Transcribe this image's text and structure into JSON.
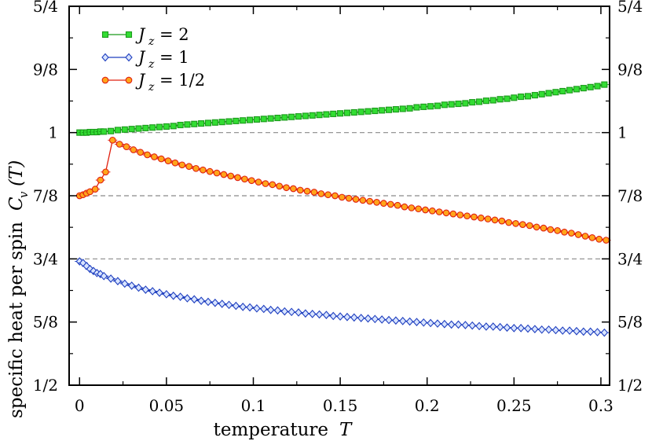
{
  "chart_data": {
    "type": "line",
    "xlabel": "temperature",
    "xlabel_symbol": "T",
    "ylabel": "specific heat per spin",
    "ylabel_symbol": "C",
    "ylabel_subscript": "v",
    "ylabel_arg": "(T)",
    "xlim": [
      -0.006,
      0.305
    ],
    "ylim": [
      0.5,
      1.25
    ],
    "x_ticks": [
      0,
      0.05,
      0.1,
      0.15,
      0.2,
      0.25,
      0.3
    ],
    "x_tick_labels": [
      "0",
      "0.05",
      "0.1",
      "0.15",
      "0.2",
      "0.25",
      "0.3"
    ],
    "y_ticks": [
      0.5,
      0.625,
      0.75,
      0.875,
      1.0,
      1.125,
      1.25
    ],
    "y_tick_labels": [
      "1/2",
      "5/8",
      "3/4",
      "7/8",
      "1",
      "9/8",
      "5/4"
    ],
    "reference_lines": [
      0.75,
      0.875,
      1.0
    ],
    "legend_placement": "top-left",
    "series": [
      {
        "legend_symbol": "J",
        "legend_subscript": "z",
        "legend_value": "= 2",
        "color": "#1a9a1a",
        "fill": "#33dd33",
        "marker": "square",
        "x": [
          0.0,
          0.002,
          0.004,
          0.006,
          0.008,
          0.01,
          0.012,
          0.014,
          0.018,
          0.022,
          0.026,
          0.03,
          0.034,
          0.038,
          0.042,
          0.046,
          0.05,
          0.054,
          0.058,
          0.062,
          0.066,
          0.07,
          0.074,
          0.078,
          0.082,
          0.086,
          0.09,
          0.094,
          0.098,
          0.102,
          0.106,
          0.11,
          0.114,
          0.118,
          0.122,
          0.126,
          0.13,
          0.134,
          0.138,
          0.142,
          0.146,
          0.15,
          0.154,
          0.158,
          0.162,
          0.166,
          0.17,
          0.174,
          0.178,
          0.182,
          0.186,
          0.19,
          0.194,
          0.198,
          0.202,
          0.206,
          0.21,
          0.214,
          0.218,
          0.222,
          0.226,
          0.23,
          0.234,
          0.238,
          0.242,
          0.246,
          0.25,
          0.254,
          0.258,
          0.262,
          0.266,
          0.27,
          0.274,
          0.278,
          0.282,
          0.286,
          0.29,
          0.294,
          0.298,
          0.302
        ],
        "y": [
          1.0,
          1.0,
          1.0,
          1.001,
          1.001,
          1.001,
          1.002,
          1.002,
          1.003,
          1.005,
          1.006,
          1.007,
          1.008,
          1.009,
          1.01,
          1.011,
          1.012,
          1.013,
          1.015,
          1.016,
          1.017,
          1.018,
          1.019,
          1.02,
          1.021,
          1.022,
          1.023,
          1.024,
          1.025,
          1.026,
          1.027,
          1.028,
          1.029,
          1.03,
          1.031,
          1.032,
          1.033,
          1.034,
          1.035,
          1.036,
          1.037,
          1.038,
          1.039,
          1.04,
          1.041,
          1.042,
          1.043,
          1.044,
          1.045,
          1.046,
          1.047,
          1.048,
          1.05,
          1.051,
          1.052,
          1.053,
          1.055,
          1.056,
          1.057,
          1.058,
          1.06,
          1.061,
          1.063,
          1.064,
          1.066,
          1.067,
          1.069,
          1.071,
          1.072,
          1.074,
          1.076,
          1.078,
          1.08,
          1.082,
          1.084,
          1.086,
          1.088,
          1.09,
          1.092,
          1.095
        ]
      },
      {
        "legend_symbol": "J",
        "legend_subscript": "z",
        "legend_value": "= 1",
        "color": "#1f3fbf",
        "fill": "#d8e4ff",
        "marker": "diamond",
        "x": [
          0.0,
          0.002,
          0.004,
          0.006,
          0.008,
          0.01,
          0.012,
          0.014,
          0.018,
          0.022,
          0.026,
          0.03,
          0.034,
          0.038,
          0.042,
          0.046,
          0.05,
          0.054,
          0.058,
          0.062,
          0.066,
          0.07,
          0.074,
          0.078,
          0.082,
          0.086,
          0.09,
          0.094,
          0.098,
          0.102,
          0.106,
          0.11,
          0.114,
          0.118,
          0.122,
          0.126,
          0.13,
          0.134,
          0.138,
          0.142,
          0.146,
          0.15,
          0.154,
          0.158,
          0.162,
          0.166,
          0.17,
          0.174,
          0.178,
          0.182,
          0.186,
          0.19,
          0.194,
          0.198,
          0.202,
          0.206,
          0.21,
          0.214,
          0.218,
          0.222,
          0.226,
          0.23,
          0.234,
          0.238,
          0.242,
          0.246,
          0.25,
          0.254,
          0.258,
          0.262,
          0.266,
          0.27,
          0.274,
          0.278,
          0.282,
          0.286,
          0.29,
          0.294,
          0.298,
          0.302
        ],
        "y": [
          0.745,
          0.742,
          0.736,
          0.73,
          0.726,
          0.722,
          0.72,
          0.716,
          0.711,
          0.706,
          0.701,
          0.697,
          0.693,
          0.689,
          0.686,
          0.683,
          0.68,
          0.677,
          0.675,
          0.672,
          0.67,
          0.667,
          0.665,
          0.663,
          0.661,
          0.659,
          0.657,
          0.655,
          0.654,
          0.652,
          0.651,
          0.649,
          0.648,
          0.646,
          0.645,
          0.644,
          0.642,
          0.641,
          0.64,
          0.639,
          0.637,
          0.636,
          0.635,
          0.634,
          0.633,
          0.632,
          0.631,
          0.63,
          0.629,
          0.628,
          0.627,
          0.626,
          0.625,
          0.624,
          0.623,
          0.622,
          0.621,
          0.62,
          0.62,
          0.619,
          0.618,
          0.617,
          0.616,
          0.616,
          0.615,
          0.614,
          0.613,
          0.613,
          0.612,
          0.611,
          0.61,
          0.61,
          0.609,
          0.608,
          0.608,
          0.607,
          0.606,
          0.606,
          0.605,
          0.604
        ]
      },
      {
        "legend_symbol": "J",
        "legend_subscript": "z",
        "legend_value": "= 1/2",
        "color": "#e02010",
        "fill": "#ffa51a",
        "marker": "circle",
        "x": [
          0.0,
          0.002,
          0.004,
          0.006,
          0.009,
          0.012,
          0.015,
          0.019,
          0.023,
          0.027,
          0.031,
          0.035,
          0.039,
          0.043,
          0.047,
          0.051,
          0.055,
          0.059,
          0.063,
          0.067,
          0.071,
          0.075,
          0.079,
          0.083,
          0.087,
          0.091,
          0.095,
          0.099,
          0.103,
          0.107,
          0.111,
          0.115,
          0.119,
          0.123,
          0.127,
          0.131,
          0.135,
          0.139,
          0.143,
          0.147,
          0.151,
          0.155,
          0.159,
          0.163,
          0.167,
          0.171,
          0.175,
          0.179,
          0.183,
          0.187,
          0.191,
          0.195,
          0.199,
          0.203,
          0.207,
          0.211,
          0.215,
          0.219,
          0.223,
          0.227,
          0.231,
          0.235,
          0.239,
          0.243,
          0.247,
          0.251,
          0.255,
          0.259,
          0.263,
          0.267,
          0.271,
          0.275,
          0.279,
          0.283,
          0.287,
          0.291,
          0.295,
          0.299,
          0.303
        ],
        "y": [
          0.875,
          0.877,
          0.88,
          0.883,
          0.888,
          0.906,
          0.922,
          0.985,
          0.977,
          0.972,
          0.966,
          0.961,
          0.956,
          0.952,
          0.948,
          0.944,
          0.94,
          0.936,
          0.933,
          0.929,
          0.926,
          0.923,
          0.92,
          0.917,
          0.914,
          0.911,
          0.908,
          0.905,
          0.902,
          0.899,
          0.897,
          0.894,
          0.891,
          0.889,
          0.886,
          0.884,
          0.882,
          0.879,
          0.877,
          0.875,
          0.872,
          0.87,
          0.868,
          0.866,
          0.864,
          0.862,
          0.86,
          0.858,
          0.856,
          0.853,
          0.851,
          0.849,
          0.847,
          0.845,
          0.843,
          0.841,
          0.839,
          0.837,
          0.835,
          0.833,
          0.831,
          0.829,
          0.827,
          0.825,
          0.822,
          0.82,
          0.818,
          0.816,
          0.813,
          0.811,
          0.808,
          0.806,
          0.803,
          0.801,
          0.798,
          0.795,
          0.792,
          0.789,
          0.787
        ]
      }
    ]
  }
}
